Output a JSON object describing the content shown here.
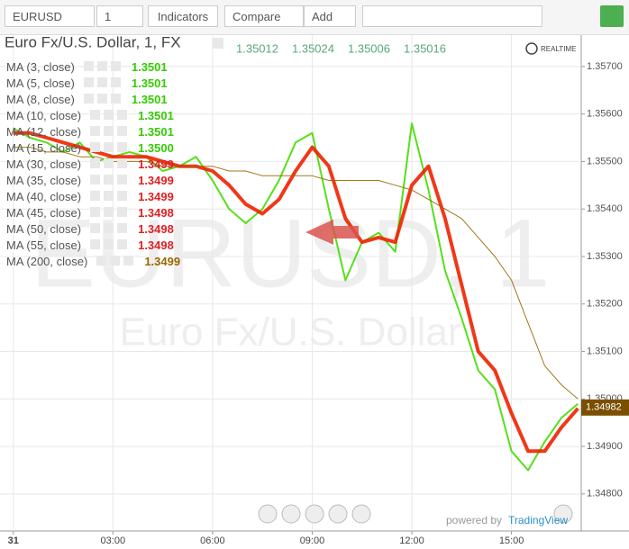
{
  "toolbar": {
    "symbol": "EURUSD",
    "interval": "1",
    "indicators": "Indicators",
    "compare": "Compare",
    "add": "Add"
  },
  "realtime": "REALTIME",
  "watermark": {
    "symbol": "EURUSD, 1",
    "description": "Euro Fx/U.S. Dollar"
  },
  "branding": {
    "prefix": "powered by",
    "name": "TradingView"
  },
  "studies": [
    {
      "name": "MA (3, close)",
      "value": "1.3501",
      "color": "#33cc00"
    },
    {
      "name": "MA (5, close)",
      "value": "1.3501",
      "color": "#33cc00"
    },
    {
      "name": "MA (8, close)",
      "value": "1.3501",
      "color": "#33cc00"
    },
    {
      "name": "MA (10, close)",
      "value": "1.3501",
      "color": "#33cc00"
    },
    {
      "name": "MA (12, close)",
      "value": "1.3501",
      "color": "#33cc00"
    },
    {
      "name": "MA (15, close)",
      "value": "1.3500",
      "color": "#33cc00"
    },
    {
      "name": "MA (30, close)",
      "value": "1.3499",
      "color": "#dd2222"
    },
    {
      "name": "MA (35, close)",
      "value": "1.3499",
      "color": "#dd2222"
    },
    {
      "name": "MA (40, close)",
      "value": "1.3499",
      "color": "#dd2222"
    },
    {
      "name": "MA (45, close)",
      "value": "1.3498",
      "color": "#dd2222"
    },
    {
      "name": "MA (50, close)",
      "value": "1.3498",
      "color": "#dd2222"
    },
    {
      "name": "MA (55, close)",
      "value": "1.3498",
      "color": "#dd2222"
    },
    {
      "name": "MA (200, close)",
      "value": "1.3499",
      "color": "#996600"
    }
  ],
  "chart_data": {
    "type": "line",
    "title": "Euro Fx/U.S. Dollar, 1, FX",
    "ohlc": [
      1.35012,
      1.35024,
      1.35006,
      1.35016
    ],
    "x": [
      0,
      0.5,
      1,
      1.5,
      2,
      2.5,
      3,
      3.5,
      4,
      4.5,
      5,
      5.5,
      6,
      6.5,
      7,
      7.5,
      8,
      8.5,
      9,
      9.5,
      10,
      10.5,
      11,
      11.5,
      12,
      12.5,
      13,
      13.5,
      14,
      14.5,
      15,
      15.5,
      16,
      16.5,
      17
    ],
    "series": [
      {
        "name": "EURUSD",
        "color": "#44dd00",
        "width": 2,
        "values": [
          1.3557,
          1.3555,
          1.3554,
          1.3552,
          1.3554,
          1.355,
          1.3551,
          1.3552,
          1.3551,
          1.3548,
          1.3549,
          1.3551,
          1.3546,
          1.354,
          1.3537,
          1.354,
          1.3546,
          1.3554,
          1.3556,
          1.354,
          1.3525,
          1.3533,
          1.3535,
          1.3531,
          1.3558,
          1.3544,
          1.3527,
          1.3517,
          1.3506,
          1.3502,
          1.3489,
          1.3485,
          1.3491,
          1.3496,
          1.3499
        ]
      },
      {
        "name": "MA (50, close)",
        "color": "#ee2200",
        "width": 4,
        "values": [
          1.3556,
          1.3556,
          1.3555,
          1.3554,
          1.3553,
          1.3552,
          1.3551,
          1.3551,
          1.3551,
          1.355,
          1.3549,
          1.3549,
          1.3548,
          1.3545,
          1.3541,
          1.3539,
          1.3542,
          1.3548,
          1.3553,
          1.3549,
          1.3538,
          1.3533,
          1.3534,
          1.3533,
          1.3545,
          1.3549,
          1.3538,
          1.3524,
          1.351,
          1.3506,
          1.3497,
          1.3489,
          1.3489,
          1.3494,
          1.3498
        ]
      },
      {
        "name": "MA (200, close)",
        "color": "#996600",
        "width": 1,
        "values": [
          1.3553,
          1.3553,
          1.3552,
          1.3552,
          1.3551,
          1.3551,
          1.355,
          1.355,
          1.355,
          1.3549,
          1.3549,
          1.3549,
          1.3549,
          1.3548,
          1.3548,
          1.3547,
          1.3547,
          1.3547,
          1.3547,
          1.3546,
          1.3546,
          1.3546,
          1.3546,
          1.3545,
          1.3544,
          1.3542,
          1.354,
          1.3538,
          1.3534,
          1.353,
          1.3525,
          1.3516,
          1.3507,
          1.3503,
          1.35
        ]
      }
    ],
    "xlim": [
      -0.4,
      17.1
    ],
    "xticks": [
      {
        "value": 0,
        "label": "31"
      },
      {
        "value": 3,
        "label": "03:00"
      },
      {
        "value": 6,
        "label": "06:00"
      },
      {
        "value": 9,
        "label": "09:00"
      },
      {
        "value": 12,
        "label": "12:00"
      },
      {
        "value": 15,
        "label": "15:00"
      }
    ],
    "ylim": [
      1.34722,
      1.35768
    ],
    "yticks": [
      {
        "value": 1.348,
        "label": "1.34800"
      },
      {
        "value": 1.349,
        "label": "1.34900"
      },
      {
        "value": 1.35,
        "label": "1.35000"
      },
      {
        "value": 1.351,
        "label": "1.35100"
      },
      {
        "value": 1.352,
        "label": "1.35200"
      },
      {
        "value": 1.353,
        "label": "1.35300"
      },
      {
        "value": 1.354,
        "label": "1.35400"
      },
      {
        "value": 1.355,
        "label": "1.35500"
      },
      {
        "value": 1.356,
        "label": "1.35600"
      },
      {
        "value": 1.357,
        "label": "1.35700"
      }
    ],
    "last_price": 1.34982,
    "grid": true
  }
}
